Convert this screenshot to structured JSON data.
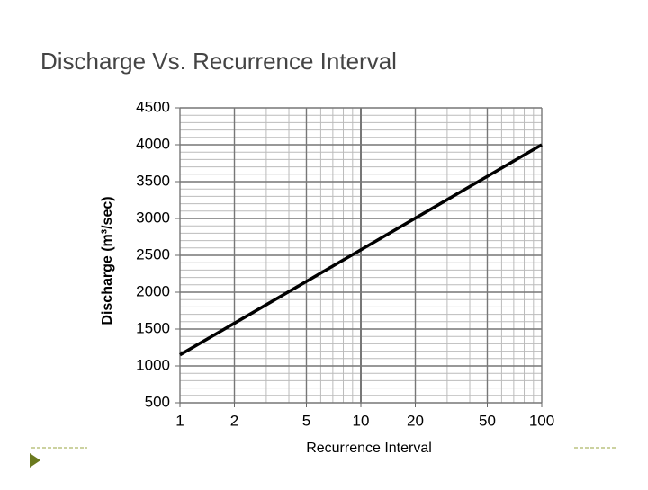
{
  "chart_data": {
    "type": "line",
    "title": "Discharge Vs. Recurrence Interval",
    "x_label": "Recurrence Interval",
    "y_label": "Discharge (m³/sec)",
    "x": [
      1,
      10,
      100
    ],
    "values": [
      1150,
      2575,
      4000
    ],
    "color": "#000000",
    "xlim": [
      1,
      100
    ],
    "xticks": [
      1,
      2,
      5,
      10,
      20,
      50,
      100
    ],
    "xscale": "log",
    "ylim": [
      500,
      4500
    ],
    "yticks": [
      500,
      1000,
      1500,
      2000,
      2500,
      3000,
      3500,
      4000,
      4500
    ],
    "grid": true,
    "minor_grid": true
  }
}
